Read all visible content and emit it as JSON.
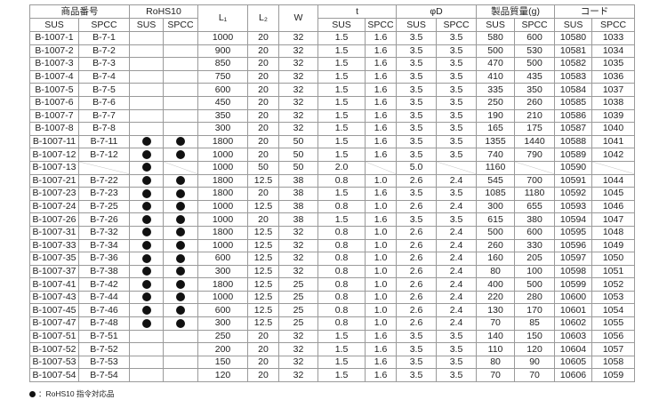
{
  "headers": {
    "product_no": "商品番号",
    "rohs": "RoHS10",
    "l1": "L₁",
    "l2": "L₂",
    "w": "W",
    "t": "t",
    "phid": "φD",
    "mass": "製品質量(g)",
    "code": "コード",
    "sus": "SUS",
    "spcc": "SPCC"
  },
  "rows": [
    [
      "B-1007-1",
      "B-7-1",
      false,
      false,
      "1000",
      "20",
      "32",
      "1.5",
      "1.6",
      "3.5",
      "3.5",
      "580",
      "600",
      "10580",
      "1033"
    ],
    [
      "B-1007-2",
      "B-7-2",
      false,
      false,
      "900",
      "20",
      "32",
      "1.5",
      "1.6",
      "3.5",
      "3.5",
      "500",
      "530",
      "10581",
      "1034"
    ],
    [
      "B-1007-3",
      "B-7-3",
      false,
      false,
      "850",
      "20",
      "32",
      "1.5",
      "1.6",
      "3.5",
      "3.5",
      "470",
      "500",
      "10582",
      "1035"
    ],
    [
      "B-1007-4",
      "B-7-4",
      false,
      false,
      "750",
      "20",
      "32",
      "1.5",
      "1.6",
      "3.5",
      "3.5",
      "410",
      "435",
      "10583",
      "1036"
    ],
    [
      "B-1007-5",
      "B-7-5",
      false,
      false,
      "600",
      "20",
      "32",
      "1.5",
      "1.6",
      "3.5",
      "3.5",
      "335",
      "350",
      "10584",
      "1037"
    ],
    [
      "B-1007-6",
      "B-7-6",
      false,
      false,
      "450",
      "20",
      "32",
      "1.5",
      "1.6",
      "3.5",
      "3.5",
      "250",
      "260",
      "10585",
      "1038"
    ],
    [
      "B-1007-7",
      "B-7-7",
      false,
      false,
      "350",
      "20",
      "32",
      "1.5",
      "1.6",
      "3.5",
      "3.5",
      "190",
      "210",
      "10586",
      "1039"
    ],
    [
      "B-1007-8",
      "B-7-8",
      false,
      false,
      "300",
      "20",
      "32",
      "1.5",
      "1.6",
      "3.5",
      "3.5",
      "165",
      "175",
      "10587",
      "1040"
    ],
    [
      "B-1007-11",
      "B-7-11",
      true,
      true,
      "1800",
      "20",
      "50",
      "1.5",
      "1.6",
      "3.5",
      "3.5",
      "1355",
      "1440",
      "10588",
      "1041"
    ],
    [
      "B-1007-12",
      "B-7-12",
      true,
      true,
      "1000",
      "20",
      "50",
      "1.5",
      "1.6",
      "3.5",
      "3.5",
      "740",
      "790",
      "10589",
      "1042"
    ],
    [
      "B-1007-13",
      null,
      true,
      null,
      "1000",
      "50",
      "50",
      "2.0",
      null,
      "5.0",
      null,
      "1160",
      null,
      "10590",
      null
    ],
    [
      "B-1007-21",
      "B-7-22",
      true,
      true,
      "1800",
      "12.5",
      "38",
      "0.8",
      "1.0",
      "2.6",
      "2.4",
      "545",
      "700",
      "10591",
      "1044"
    ],
    [
      "B-1007-23",
      "B-7-23",
      true,
      true,
      "1800",
      "20",
      "38",
      "1.5",
      "1.6",
      "3.5",
      "3.5",
      "1085",
      "1180",
      "10592",
      "1045"
    ],
    [
      "B-1007-24",
      "B-7-25",
      true,
      true,
      "1000",
      "12.5",
      "38",
      "0.8",
      "1.0",
      "2.6",
      "2.4",
      "300",
      "655",
      "10593",
      "1046"
    ],
    [
      "B-1007-26",
      "B-7-26",
      true,
      true,
      "1000",
      "20",
      "38",
      "1.5",
      "1.6",
      "3.5",
      "3.5",
      "615",
      "380",
      "10594",
      "1047"
    ],
    [
      "B-1007-31",
      "B-7-32",
      true,
      true,
      "1800",
      "12.5",
      "32",
      "0.8",
      "1.0",
      "2.6",
      "2.4",
      "500",
      "600",
      "10595",
      "1048"
    ],
    [
      "B-1007-33",
      "B-7-34",
      true,
      true,
      "1000",
      "12.5",
      "32",
      "0.8",
      "1.0",
      "2.6",
      "2.4",
      "260",
      "330",
      "10596",
      "1049"
    ],
    [
      "B-1007-35",
      "B-7-36",
      true,
      true,
      "600",
      "12.5",
      "32",
      "0.8",
      "1.0",
      "2.6",
      "2.4",
      "160",
      "205",
      "10597",
      "1050"
    ],
    [
      "B-1007-37",
      "B-7-38",
      true,
      true,
      "300",
      "12.5",
      "32",
      "0.8",
      "1.0",
      "2.6",
      "2.4",
      "80",
      "100",
      "10598",
      "1051"
    ],
    [
      "B-1007-41",
      "B-7-42",
      true,
      true,
      "1800",
      "12.5",
      "25",
      "0.8",
      "1.0",
      "2.6",
      "2.4",
      "400",
      "500",
      "10599",
      "1052"
    ],
    [
      "B-1007-43",
      "B-7-44",
      true,
      true,
      "1000",
      "12.5",
      "25",
      "0.8",
      "1.0",
      "2.6",
      "2.4",
      "220",
      "280",
      "10600",
      "1053"
    ],
    [
      "B-1007-45",
      "B-7-46",
      true,
      true,
      "600",
      "12.5",
      "25",
      "0.8",
      "1.0",
      "2.6",
      "2.4",
      "130",
      "170",
      "10601",
      "1054"
    ],
    [
      "B-1007-47",
      "B-7-48",
      true,
      true,
      "300",
      "12.5",
      "25",
      "0.8",
      "1.0",
      "2.6",
      "2.4",
      "70",
      "85",
      "10602",
      "1055"
    ],
    [
      "B-1007-51",
      "B-7-51",
      false,
      false,
      "250",
      "20",
      "32",
      "1.5",
      "1.6",
      "3.5",
      "3.5",
      "140",
      "150",
      "10603",
      "1056"
    ],
    [
      "B-1007-52",
      "B-7-52",
      false,
      false,
      "200",
      "20",
      "32",
      "1.5",
      "1.6",
      "3.5",
      "3.5",
      "110",
      "120",
      "10604",
      "1057"
    ],
    [
      "B-1007-53",
      "B-7-53",
      false,
      false,
      "150",
      "20",
      "32",
      "1.5",
      "1.6",
      "3.5",
      "3.5",
      "80",
      "90",
      "10605",
      "1058"
    ],
    [
      "B-1007-54",
      "B-7-54",
      false,
      false,
      "120",
      "20",
      "32",
      "1.5",
      "1.6",
      "3.5",
      "3.5",
      "70",
      "70",
      "10606",
      "1059"
    ]
  ],
  "footnote": "：RoHS10 指令対応品"
}
